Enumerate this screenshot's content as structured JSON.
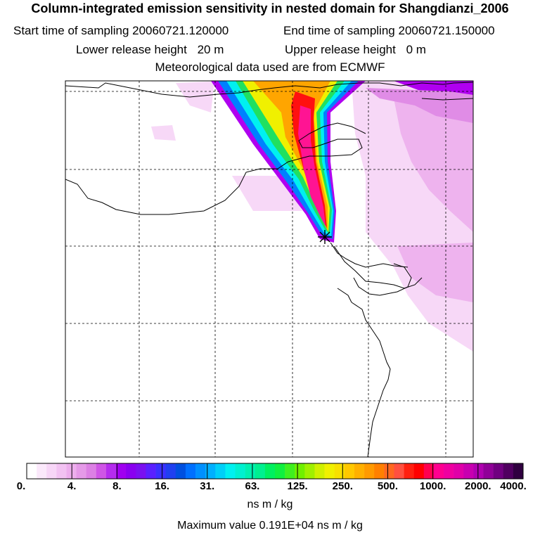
{
  "title": "Column-integrated emission sensitivity in nested domain for Shangdianzi_2006",
  "sampling": {
    "start_label": "Start time of sampling",
    "start_value": "20060721.120000",
    "end_label": "End time of sampling",
    "end_value": "20060721.150000"
  },
  "release": {
    "lower_label": "Lower release height",
    "lower_value": "20 m",
    "upper_label": "Upper release height",
    "upper_value": "0 m"
  },
  "met_note": "Meteorological data used are from ECMWF",
  "map": {
    "receptor_symbol": "star-marker",
    "colors": {
      "pale_pink": "#f7d8f7",
      "light_magenta": "#eeb3ee",
      "magenta": "#e08ce6",
      "purple": "#b000f0",
      "blue": "#0080ff",
      "cyan": "#00f0f0",
      "green": "#20e060",
      "yellow": "#f0f000",
      "orange": "#ffa500",
      "red": "#ff1010",
      "hot_pink": "#ff1493"
    }
  },
  "colorbar": {
    "tick_labels": [
      "0.",
      "4.",
      "8.",
      "16.",
      "31.",
      "63.",
      "125.",
      "250.",
      "500.",
      "1000.",
      "2000.",
      "4000."
    ],
    "colors": [
      "#ffffff",
      "#fbe9fb",
      "#f7d6f7",
      "#f2c2f2",
      "#edaeed",
      "#e59ae8",
      "#dc80e4",
      "#cf55e6",
      "#b52cee",
      "#a000f0",
      "#8a00f0",
      "#7a10f0",
      "#5a20ff",
      "#3a30ff",
      "#2040f0",
      "#0050e0",
      "#0070ff",
      "#0090ff",
      "#00b0ff",
      "#00d0f8",
      "#00f0f0",
      "#00f0d0",
      "#00f0b0",
      "#00f090",
      "#00f060",
      "#10f040",
      "#40f020",
      "#70f000",
      "#a0f000",
      "#d0f000",
      "#f0f000",
      "#f8e000",
      "#ffc800",
      "#ffb000",
      "#ff9a00",
      "#ff8000",
      "#ff6820",
      "#ff5040",
      "#ff2010",
      "#ff0000",
      "#ff0050",
      "#ff0090",
      "#f000a0",
      "#e000a8",
      "#c800b0",
      "#b000b0",
      "#900098",
      "#700080",
      "#500060",
      "#300040"
    ],
    "units": "ns m / kg"
  },
  "max_value_line": "Maximum value  0.191E+04 ns m / kg"
}
